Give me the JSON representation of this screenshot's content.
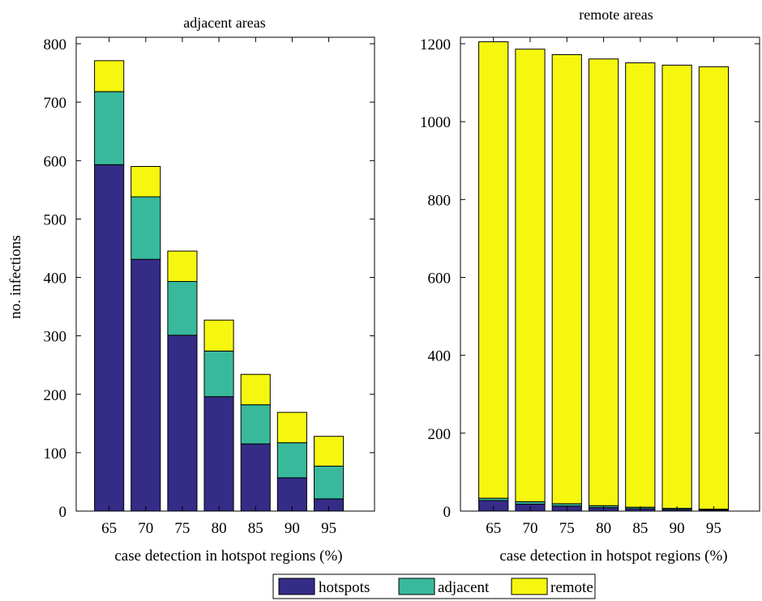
{
  "chart_data": [
    {
      "type": "bar",
      "stacked": true,
      "title": "adjacent areas",
      "xlabel": "case detection in hotspot regions (%)",
      "ylabel": "no. infections",
      "categories": [
        "65",
        "70",
        "75",
        "80",
        "85",
        "90",
        "95"
      ],
      "ylim": [
        0,
        800
      ],
      "yticks": [
        "0",
        "100",
        "200",
        "300",
        "400",
        "500",
        "600",
        "700",
        "800"
      ],
      "series": [
        {
          "name": "hotspots",
          "color": "#342C86",
          "values": [
            593,
            431,
            301,
            196,
            115,
            57,
            21
          ]
        },
        {
          "name": "adjacent",
          "color": "#39B99C",
          "values": [
            125,
            107,
            92,
            78,
            67,
            60,
            56
          ]
        },
        {
          "name": "remote",
          "color": "#F6F70F",
          "values": [
            53,
            52,
            52,
            53,
            52,
            52,
            51
          ]
        }
      ],
      "grid": false
    },
    {
      "type": "bar",
      "stacked": true,
      "title": "remote areas",
      "xlabel": "case detection in hotspot regions (%)",
      "ylabel": "",
      "categories": [
        "65",
        "70",
        "75",
        "80",
        "85",
        "90",
        "95"
      ],
      "ylim": [
        0,
        1200
      ],
      "yticks": [
        "0",
        "200",
        "400",
        "600",
        "800",
        "1000",
        "1200"
      ],
      "series": [
        {
          "name": "hotspots",
          "color": "#342C86",
          "values": [
            27,
            18,
            13,
            9,
            6,
            4,
            3
          ]
        },
        {
          "name": "adjacent",
          "color": "#39B99C",
          "values": [
            6,
            6,
            6,
            5,
            4,
            3,
            2
          ]
        },
        {
          "name": "remote",
          "color": "#F6F70F",
          "values": [
            1172,
            1162,
            1153,
            1147,
            1141,
            1138,
            1136
          ]
        }
      ],
      "grid": false
    }
  ],
  "legend": {
    "items": [
      {
        "label": "hotspots",
        "color": "#342C86"
      },
      {
        "label": "adjacent",
        "color": "#39B99C"
      },
      {
        "label": "remote",
        "color": "#F6F70F"
      }
    ]
  }
}
